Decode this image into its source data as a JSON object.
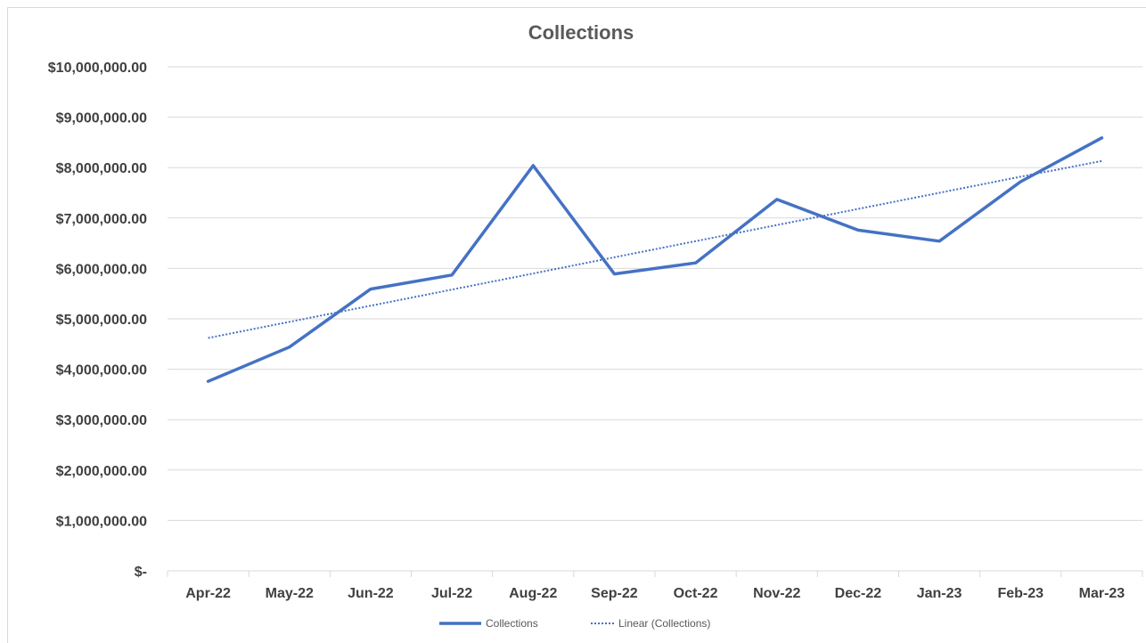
{
  "chart_data": {
    "type": "line",
    "title": "Collections",
    "xlabel": "",
    "ylabel": "",
    "categories": [
      "Apr-22",
      "May-22",
      "Jun-22",
      "Jul-22",
      "Aug-22",
      "Sep-22",
      "Oct-22",
      "Nov-22",
      "Dec-22",
      "Jan-23",
      "Feb-23",
      "Mar-23"
    ],
    "series": [
      {
        "name": "Collections",
        "color": "#4472c4",
        "style": "solid",
        "values": [
          3760000,
          4440000,
          5590000,
          5870000,
          8040000,
          5890000,
          6110000,
          7370000,
          6760000,
          6540000,
          7720000,
          8590000
        ]
      },
      {
        "name": "Linear (Collections)",
        "color": "#4472c4",
        "style": "dotted",
        "values": [
          4620000,
          4940000,
          5260000,
          5580000,
          5900000,
          6220000,
          6540000,
          6860000,
          7180000,
          7500000,
          7820000,
          8130000
        ]
      }
    ],
    "ylim": [
      0,
      10000000
    ],
    "yticks": [
      0,
      1000000,
      2000000,
      3000000,
      4000000,
      5000000,
      6000000,
      7000000,
      8000000,
      9000000,
      10000000
    ],
    "ytick_labels": [
      "$-",
      "$1,000,000.00",
      "$2,000,000.00",
      "$3,000,000.00",
      "$4,000,000.00",
      "$5,000,000.00",
      "$6,000,000.00",
      "$7,000,000.00",
      "$8,000,000.00",
      "$9,000,000.00",
      "$10,000,000.00"
    ],
    "grid": true,
    "legend_position": "bottom"
  }
}
